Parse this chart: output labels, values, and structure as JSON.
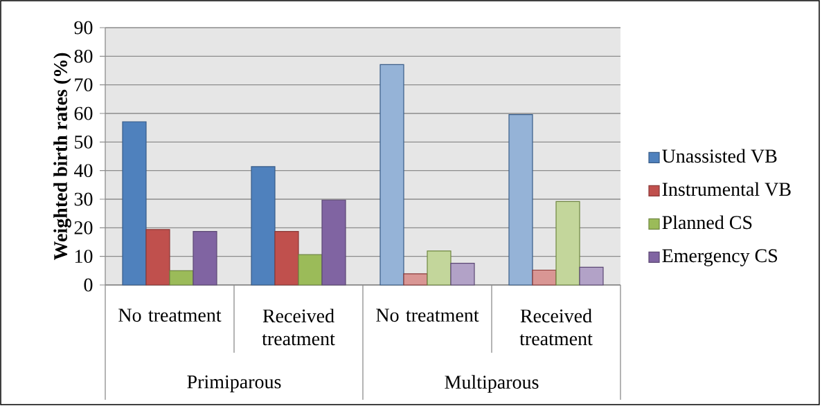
{
  "chart_data": {
    "type": "bar",
    "ylabel": "Weighted birth rates (%)",
    "categories": [
      "No treatment",
      "Received treatment",
      "No treatment",
      "Received treatment"
    ],
    "annotations": [
      "Primiparous",
      "Multiparous"
    ],
    "series": [
      {
        "name": "Unassisted VB",
        "color": "#4f81bd",
        "colors": [
          "#4f81bd",
          "#4f81bd",
          "#95b3d7",
          "#95b3d7"
        ],
        "values": [
          57.1,
          41.4,
          77.1,
          59.6
        ]
      },
      {
        "name": "Instrumental VB",
        "color": "#c0504d",
        "colors": [
          "#c0504d",
          "#c0504d",
          "#d99694",
          "#d99694"
        ],
        "values": [
          19.4,
          18.7,
          3.9,
          5.2
        ]
      },
      {
        "name": "Planned CS",
        "color": "#9bbb59",
        "colors": [
          "#9bbb59",
          "#9bbb59",
          "#c3d69b",
          "#c3d69b"
        ],
        "values": [
          5.0,
          10.6,
          11.9,
          29.2
        ]
      },
      {
        "name": "Emergency CS",
        "color": "#8064a2",
        "colors": [
          "#8064a2",
          "#8064a2",
          "#b2a2c7",
          "#b2a2c7"
        ],
        "values": [
          18.7,
          29.7,
          7.6,
          6.2
        ]
      }
    ],
    "ylim": [
      0,
      90
    ],
    "yticks": [
      0,
      10,
      20,
      30,
      40,
      50,
      60,
      70,
      80,
      90
    ],
    "grid": "y",
    "legend": "right"
  }
}
